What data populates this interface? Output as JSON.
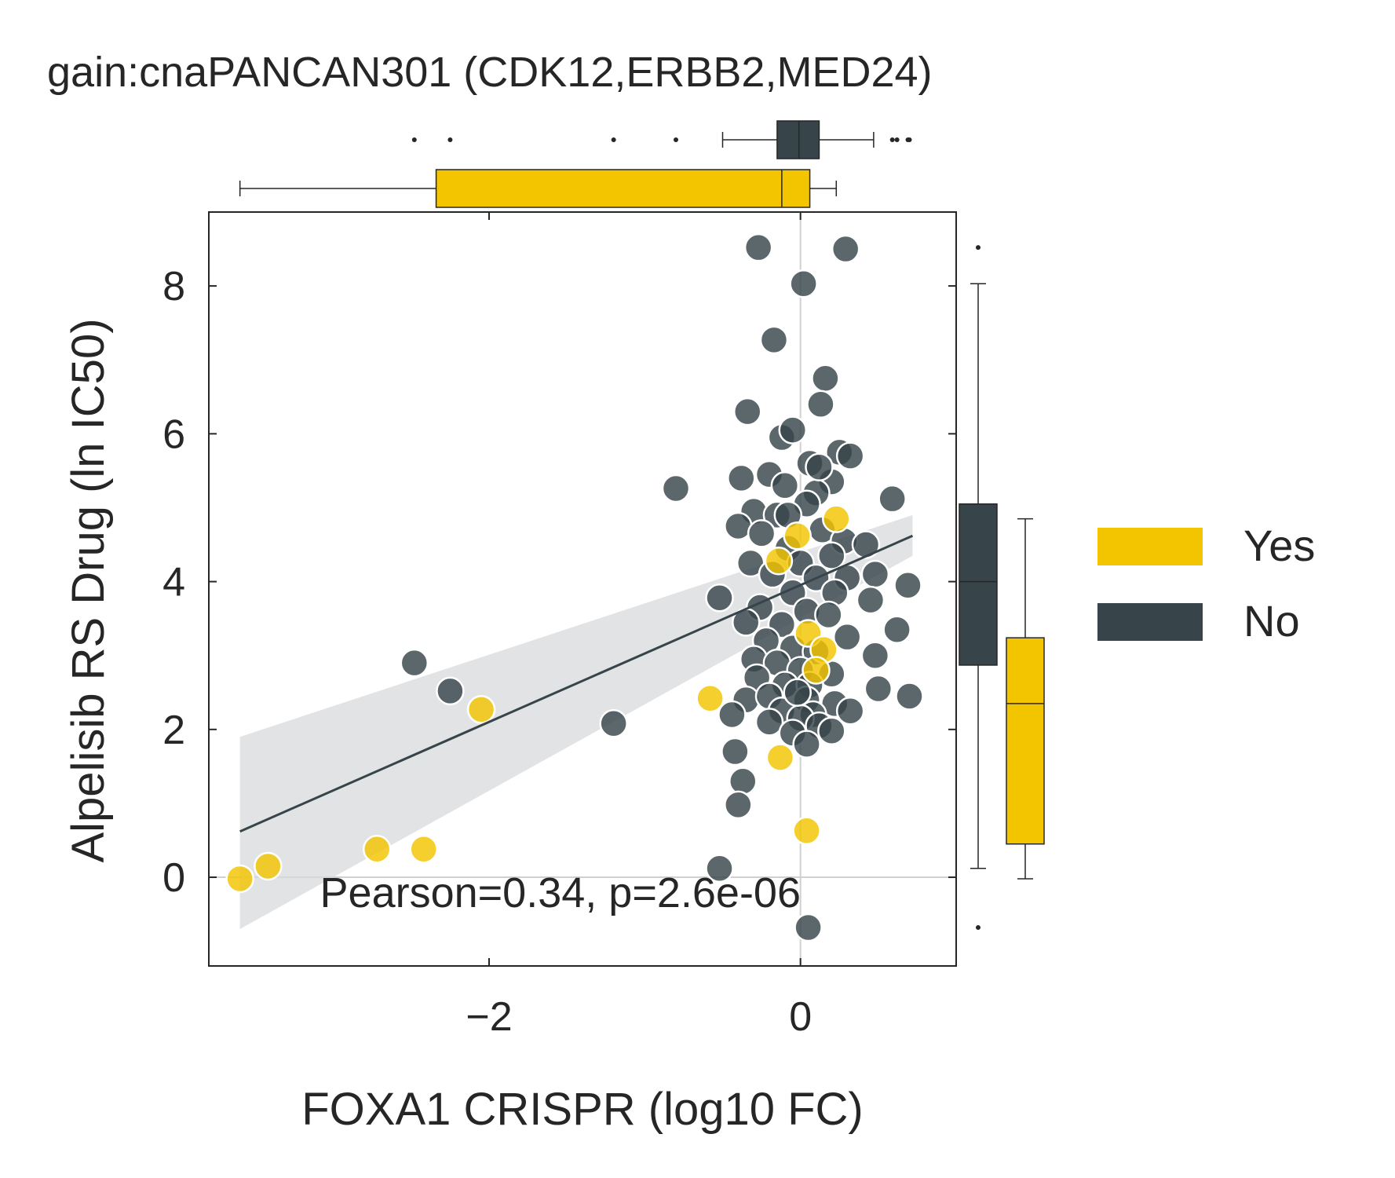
{
  "chart_data": {
    "type": "scatter",
    "title": "gain:cnaPANCAN301 (CDK12,ERBB2,MED24)",
    "xlabel": "FOXA1 CRISPR (log10 FC)",
    "ylabel": "Alpelisib RS Drug (ln IC50)",
    "xlim": [
      -3.8,
      1.0
    ],
    "ylim": [
      -1.2,
      9.0
    ],
    "xticks": [
      -2,
      0
    ],
    "xtick_labels": [
      "−2",
      "0"
    ],
    "yticks": [
      0,
      2,
      4,
      6,
      8
    ],
    "ytick_labels": [
      "0",
      "2",
      "4",
      "6",
      "8"
    ],
    "grid": "reference lines at x=0 and y=0",
    "annotation": "Pearson=0.34, p=2.6e-06",
    "colors": {
      "Yes": "#F2C500",
      "No": "#37454B",
      "ci_band": "#D8DADC",
      "axis": "#262626"
    },
    "legend": {
      "placement": "right",
      "entries": [
        {
          "label": "Yes",
          "color": "#F2C500"
        },
        {
          "label": "No",
          "color": "#37454B"
        }
      ]
    },
    "regression": {
      "x": [
        -3.6,
        0.72
      ],
      "y": [
        0.62,
        4.62
      ],
      "ci_low": [
        -0.7,
        4.35
      ],
      "ci_high": [
        1.9,
        4.9
      ]
    },
    "series": [
      {
        "name": "No",
        "color": "#37454B",
        "points": [
          [
            -0.27,
            8.52
          ],
          [
            0.29,
            8.5
          ],
          [
            0.02,
            8.03
          ],
          [
            -0.17,
            7.27
          ],
          [
            0.16,
            6.75
          ],
          [
            -0.34,
            6.3
          ],
          [
            0.13,
            6.4
          ],
          [
            -0.8,
            5.26
          ],
          [
            0.59,
            5.12
          ],
          [
            -0.38,
            5.4
          ],
          [
            -0.12,
            5.95
          ],
          [
            0.06,
            5.6
          ],
          [
            0.25,
            5.75
          ],
          [
            -0.05,
            6.05
          ],
          [
            -0.2,
            5.45
          ],
          [
            0.2,
            5.35
          ],
          [
            0.32,
            5.7
          ],
          [
            -0.1,
            5.3
          ],
          [
            0.1,
            5.2
          ],
          [
            -0.3,
            4.95
          ],
          [
            -0.4,
            4.75
          ],
          [
            0.04,
            5.05
          ],
          [
            -0.15,
            4.9
          ],
          [
            0.14,
            4.7
          ],
          [
            0.28,
            4.55
          ],
          [
            -0.25,
            4.65
          ],
          [
            -0.08,
            4.45
          ],
          [
            0.2,
            4.35
          ],
          [
            0.42,
            4.5
          ],
          [
            -0.32,
            4.25
          ],
          [
            0.0,
            4.25
          ],
          [
            0.1,
            4.05
          ],
          [
            0.3,
            4.05
          ],
          [
            -0.18,
            4.1
          ],
          [
            0.48,
            4.1
          ],
          [
            -0.05,
            3.85
          ],
          [
            0.22,
            3.85
          ],
          [
            0.69,
            3.95
          ],
          [
            -0.52,
            3.78
          ],
          [
            0.45,
            3.75
          ],
          [
            0.04,
            3.6
          ],
          [
            -0.26,
            3.65
          ],
          [
            0.18,
            3.55
          ],
          [
            -0.12,
            3.42
          ],
          [
            -0.35,
            3.45
          ],
          [
            0.62,
            3.35
          ],
          [
            0.3,
            3.25
          ],
          [
            -0.22,
            3.2
          ],
          [
            -0.05,
            3.1
          ],
          [
            0.1,
            3.05
          ],
          [
            0.48,
            3.0
          ],
          [
            -0.3,
            2.95
          ],
          [
            -0.15,
            2.9
          ],
          [
            0.0,
            2.8
          ],
          [
            0.2,
            2.75
          ],
          [
            -0.28,
            2.7
          ],
          [
            -0.1,
            2.6
          ],
          [
            0.06,
            2.6
          ],
          [
            0.5,
            2.55
          ],
          [
            -2.48,
            2.9
          ],
          [
            -2.25,
            2.52
          ],
          [
            -1.2,
            2.08
          ],
          [
            0.7,
            2.45
          ],
          [
            -0.35,
            2.4
          ],
          [
            -0.2,
            2.45
          ],
          [
            0.04,
            2.4
          ],
          [
            0.22,
            2.35
          ],
          [
            -0.44,
            2.2
          ],
          [
            -0.12,
            2.25
          ],
          [
            0.08,
            2.2
          ],
          [
            0.32,
            2.25
          ],
          [
            -0.2,
            2.1
          ],
          [
            0.0,
            2.15
          ],
          [
            0.12,
            2.05
          ],
          [
            -0.05,
            1.95
          ],
          [
            0.2,
            1.98
          ],
          [
            0.04,
            1.8
          ],
          [
            -0.42,
            1.7
          ],
          [
            -0.37,
            1.3
          ],
          [
            -0.4,
            0.98
          ],
          [
            -0.52,
            0.12
          ],
          [
            0.05,
            -0.68
          ],
          [
            -0.08,
            4.9
          ],
          [
            0.12,
            5.55
          ],
          [
            -0.02,
            2.5
          ]
        ]
      },
      {
        "name": "Yes",
        "color": "#F2C500",
        "points": [
          [
            -3.6,
            -0.02
          ],
          [
            -3.42,
            0.15
          ],
          [
            -2.72,
            0.38
          ],
          [
            -2.42,
            0.38
          ],
          [
            -2.05,
            2.27
          ],
          [
            -0.58,
            2.42
          ],
          [
            -0.13,
            1.62
          ],
          [
            0.04,
            0.63
          ],
          [
            -0.14,
            4.28
          ],
          [
            -0.02,
            4.62
          ],
          [
            0.23,
            4.85
          ],
          [
            0.05,
            3.3
          ],
          [
            0.15,
            3.08
          ],
          [
            0.1,
            2.8
          ]
        ]
      }
    ],
    "marginal_x_boxplots": [
      {
        "group": "No",
        "color": "#37454B",
        "whisker_low": -0.5,
        "q1": -0.15,
        "median": -0.01,
        "q3": 0.12,
        "whisker_high": 0.47,
        "fliers": [
          -2.48,
          -2.25,
          -1.2,
          -0.8,
          0.59,
          0.62,
          0.69,
          0.7
        ]
      },
      {
        "group": "Yes",
        "color": "#F2C500",
        "whisker_low": -3.6,
        "q1": -2.34,
        "median": -0.12,
        "q3": 0.06,
        "whisker_high": 0.23,
        "fliers": []
      }
    ],
    "marginal_y_boxplots": [
      {
        "group": "No",
        "color": "#37454B",
        "whisker_low": 0.12,
        "q1": 2.87,
        "median": 4.0,
        "q3": 5.05,
        "whisker_high": 8.03,
        "fliers": [
          8.52,
          -0.68
        ]
      },
      {
        "group": "Yes",
        "color": "#F2C500",
        "whisker_low": -0.02,
        "q1": 0.45,
        "median": 2.35,
        "q3": 3.24,
        "whisker_high": 4.85,
        "fliers": []
      }
    ]
  }
}
